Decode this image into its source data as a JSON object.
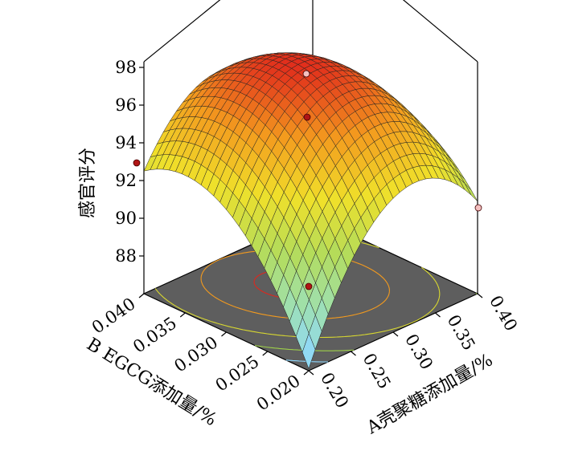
{
  "chart_data": {
    "type": "surface3d",
    "title": "",
    "xlabel": "A壳聚糖添加量/%",
    "ylabel": "B EGCG添加量/%",
    "zlabel": "感官评分",
    "x_ticks": [
      "0.20",
      "0.25",
      "0.30",
      "0.35",
      "0.40"
    ],
    "y_ticks": [
      "0.020",
      "0.025",
      "0.030",
      "0.035",
      "0.040"
    ],
    "z_ticks": [
      "88",
      "90",
      "92",
      "94",
      "96",
      "98"
    ],
    "xlim": [
      0.2,
      0.4
    ],
    "ylim": [
      0.02,
      0.04
    ],
    "zlim": [
      86,
      98
    ],
    "surface_model": {
      "description": "quadratic response surface",
      "corner_values": [
        {
          "x": 0.2,
          "y": 0.02,
          "z": 86.7
        },
        {
          "x": 0.4,
          "y": 0.02,
          "z": 89.5
        },
        {
          "x": 0.2,
          "y": 0.04,
          "z": 92.0
        },
        {
          "x": 0.4,
          "y": 0.04,
          "z": 90.8
        },
        {
          "x": 0.3,
          "y": 0.03,
          "z": 98.0
        }
      ]
    },
    "design_points": [
      {
        "x": 0.2,
        "y": 0.02,
        "z": 86.0,
        "color": "#b01515"
      },
      {
        "x": 0.2,
        "y": 0.04,
        "z": 92.0,
        "color": "#b01515"
      },
      {
        "x": 0.4,
        "y": 0.02,
        "z": 89.5,
        "color": "#f4c0c0"
      },
      {
        "x": 0.4,
        "y": 0.04,
        "z": 94.8,
        "color": "#b01515"
      },
      {
        "x": 0.4,
        "y": 0.04,
        "z": 97.8,
        "color": "#f4c0c0"
      }
    ],
    "colors": {
      "floor": "#5e5e5e",
      "mesh": "#222222",
      "colormap": [
        "#8ed8ff",
        "#9ee0b0",
        "#b4dc5a",
        "#f0e02a",
        "#f39a1e",
        "#e0261c"
      ]
    }
  }
}
